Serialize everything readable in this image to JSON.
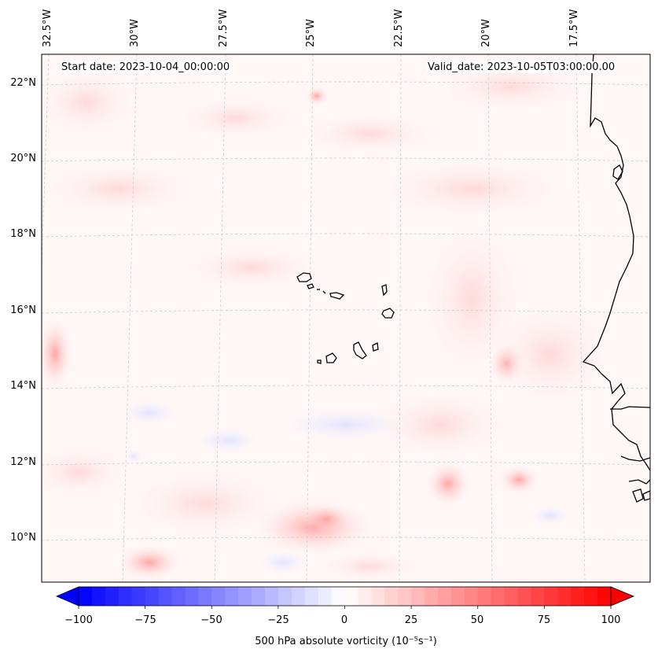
{
  "map": {
    "start_date": "Start date: 2023-10-04_00:00:00",
    "valid_date": "Valid_date: 2023-10-05T03:00:00.00",
    "longitude_labels": [
      "32.5°W",
      "30°W",
      "27.5°W",
      "25°W",
      "22.5°W",
      "20°W",
      "17.5°W"
    ],
    "latitude_labels": [
      "22°N",
      "20°N",
      "18°N",
      "16°N",
      "14°N",
      "12°N",
      "10°N"
    ],
    "features": [
      "Cape Verde islands",
      "West African coastline",
      "vorticity field"
    ]
  },
  "colorbar": {
    "variable": "500 hPa absolute vorticity",
    "units": "(10⁻⁵s⁻¹)",
    "ticks": [
      "−100",
      "−75",
      "−50",
      "−25",
      "0",
      "25",
      "50",
      "75",
      "100"
    ],
    "range": [
      -100,
      100
    ],
    "levels": 40,
    "colormap": "bwr",
    "min_color": "#0000ff",
    "mid_color": "#ffffff",
    "max_color": "#ff0000"
  },
  "colors": {
    "coastline": "#000000",
    "gridline": "#c8c8c8"
  }
}
